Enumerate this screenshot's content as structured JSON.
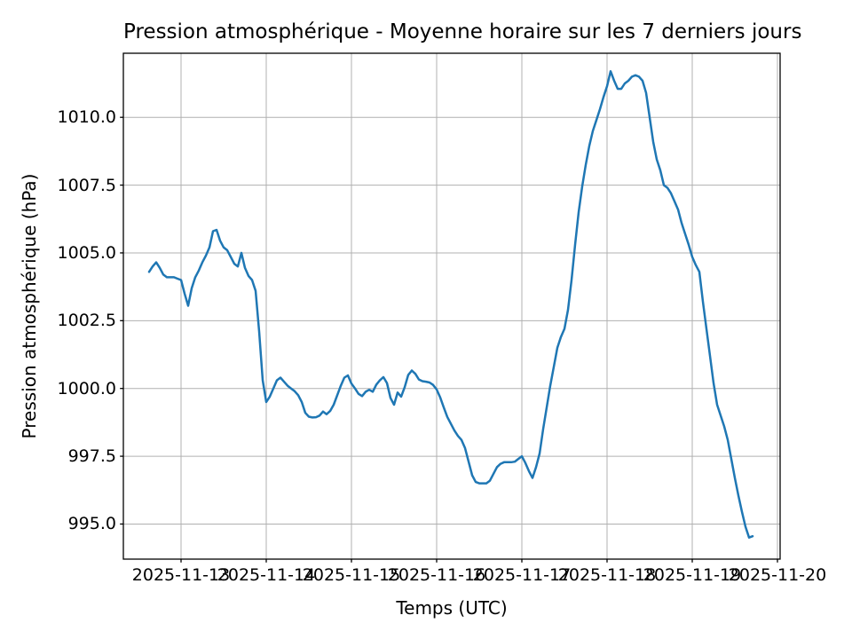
{
  "figure": {
    "background": "#ffffff",
    "text_color": "#000000"
  },
  "chart_data": {
    "type": "line",
    "title": "Pression atmosphérique - Moyenne horaire sur les 7 derniers jours",
    "xlabel": "Temps (UTC)",
    "ylabel": "Pression atmosphérique (hPa)",
    "legend": "none",
    "grid": true,
    "grid_color": "#b0b0b0",
    "spine_color": "#000000",
    "line_color": "#1f77b4",
    "line_width": 2.5,
    "x_start": "2025-11-12T15:00:00Z",
    "x_step_hours": 1,
    "x_tick_labels": [
      "2025-11-13",
      "2025-11-14",
      "2025-11-15",
      "2025-11-16",
      "2025-11-17",
      "2025-11-18",
      "2025-11-19",
      "2025-11-20"
    ],
    "x_first_tick_point_index": 9,
    "x_hours_per_tick": 24,
    "y_ticks": [
      995.0,
      997.5,
      1000.0,
      1002.5,
      1005.0,
      1007.5,
      1010.0
    ],
    "y_tick_labels": [
      "995.0",
      "997.5",
      "1000.0",
      "1002.5",
      "1005.0",
      "1007.5",
      "1010.0"
    ],
    "ylim": [
      993.7,
      1012.4
    ],
    "values": [
      1004.3,
      1004.5,
      1004.65,
      1004.45,
      1004.2,
      1004.1,
      1004.1,
      1004.1,
      1004.05,
      1004.0,
      1003.5,
      1003.05,
      1003.7,
      1004.1,
      1004.35,
      1004.65,
      1004.9,
      1005.2,
      1005.8,
      1005.85,
      1005.45,
      1005.2,
      1005.1,
      1004.85,
      1004.6,
      1004.5,
      1005.0,
      1004.45,
      1004.15,
      1004.0,
      1003.6,
      1002.1,
      1000.3,
      999.5,
      999.7,
      1000.0,
      1000.3,
      1000.4,
      1000.25,
      1000.1,
      1000.0,
      999.9,
      999.75,
      999.5,
      999.1,
      998.96,
      998.93,
      998.94,
      999.0,
      999.15,
      999.05,
      999.17,
      999.4,
      999.75,
      1000.1,
      1000.4,
      1000.48,
      1000.18,
      1000.0,
      999.8,
      999.72,
      999.88,
      999.95,
      999.88,
      1000.14,
      1000.3,
      1000.42,
      1000.2,
      999.65,
      999.4,
      999.85,
      999.7,
      1000.05,
      1000.5,
      1000.66,
      1000.54,
      1000.33,
      1000.27,
      1000.25,
      1000.22,
      1000.13,
      999.96,
      999.67,
      999.3,
      998.95,
      998.7,
      998.45,
      998.25,
      998.1,
      997.8,
      997.3,
      996.8,
      996.55,
      996.5,
      996.5,
      996.5,
      996.6,
      996.85,
      997.1,
      997.22,
      997.28,
      997.28,
      997.28,
      997.3,
      997.4,
      997.5,
      997.25,
      996.95,
      996.7,
      997.1,
      997.6,
      998.5,
      999.3,
      1000.1,
      1000.8,
      1001.5,
      1001.9,
      1002.2,
      1002.9,
      1004.0,
      1005.3,
      1006.5,
      1007.45,
      1008.25,
      1008.95,
      1009.5,
      1009.9,
      1010.3,
      1010.75,
      1011.15,
      1011.7,
      1011.35,
      1011.05,
      1011.05,
      1011.25,
      1011.35,
      1011.5,
      1011.55,
      1011.5,
      1011.35,
      1010.9,
      1010.0,
      1009.1,
      1008.45,
      1008.05,
      1007.5,
      1007.4,
      1007.2,
      1006.9,
      1006.6,
      1006.1,
      1005.7,
      1005.3,
      1004.85,
      1004.55,
      1004.3,
      1003.2,
      1002.2,
      1001.2,
      1000.2,
      999.4,
      999.0,
      998.6,
      998.1,
      997.4,
      996.7,
      996.05,
      995.45,
      994.9,
      994.5,
      994.55
    ]
  }
}
